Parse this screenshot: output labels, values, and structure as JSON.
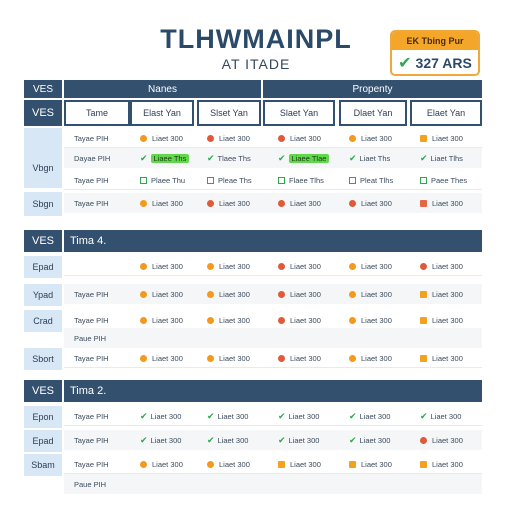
{
  "header": {
    "title": "TLHWMAINPL",
    "subtitle": "AT ITADE",
    "badge_top": "EK Tbing Pur",
    "badge_value": "327 ARS"
  },
  "table": {
    "top_left": "VES",
    "group_names": "Nanes",
    "group_properties": "Propenty",
    "corner": "VES",
    "columns": [
      "Tame",
      "Elast Yan",
      "Slset Yan",
      "Slaet Yan",
      "Dlaet Yan",
      "Elaet Yan"
    ]
  },
  "section1": {
    "rows": [
      {
        "label": "Tayae PIH",
        "cells": [
          {
            "icon": "dot-orange",
            "text": "Liaet 300"
          },
          {
            "icon": "dot-red",
            "text": "Liaet 300"
          },
          {
            "icon": "dot-red",
            "text": "Liaet 300"
          },
          {
            "icon": "dot-orange",
            "text": "Liaet 300"
          },
          {
            "icon": "sq-orange",
            "text": "Liaet 300"
          }
        ]
      },
      {
        "label": "Dayae PIH",
        "cells": [
          {
            "icon": "check",
            "text": "Liaee Ths",
            "highlight": true
          },
          {
            "icon": "check",
            "text": "Tlaee Ths"
          },
          {
            "icon": "check",
            "text": "Liaee Tlae",
            "highlight": true
          },
          {
            "icon": "check",
            "text": "Liaet Ths"
          },
          {
            "icon": "check",
            "text": "Liaet Tlhs"
          }
        ]
      },
      {
        "label": "Tayae PIH",
        "cells": [
          {
            "icon": "box",
            "text": "Plaee Thu"
          },
          {
            "icon": "box",
            "text": "Pleae Ths"
          },
          {
            "icon": "box",
            "text": "Flaee Tlhs"
          },
          {
            "icon": "box",
            "text": "Pleat Tlhs"
          },
          {
            "icon": "box",
            "text": "Paee Thes"
          }
        ]
      },
      {
        "label": "Tayae PIH",
        "cells": [
          {
            "icon": "dot-orange",
            "text": "Liaet 300"
          },
          {
            "icon": "dot-red",
            "text": "Liaet 300"
          },
          {
            "icon": "dot-red",
            "text": "Liaet 300"
          },
          {
            "icon": "dot-red",
            "text": "Liaet 300"
          },
          {
            "icon": "sq-red",
            "text": "Liaet 300"
          }
        ]
      }
    ],
    "side": [
      "VES",
      "Vbgn",
      "Sbgn"
    ]
  },
  "section2": {
    "head_left": "VES",
    "head_title": "Tima 4.",
    "side": [
      "Epad",
      "Ypad",
      "Crad",
      "Sbort"
    ],
    "rows": [
      {
        "label": "",
        "cells": [
          {
            "icon": "dot-orange",
            "text": "Liaet 300"
          },
          {
            "icon": "dot-orange",
            "text": "Liaet 300"
          },
          {
            "icon": "dot-red",
            "text": "Liaet 300"
          },
          {
            "icon": "dot-orange",
            "text": "Liaet 300"
          },
          {
            "icon": "dot-red",
            "text": "Liaet 300"
          }
        ]
      },
      {
        "label": "Tayae PIH",
        "cells": [
          {
            "icon": "dot-orange",
            "text": "Liaet 300"
          },
          {
            "icon": "dot-orange",
            "text": "Liaet 300"
          },
          {
            "icon": "dot-red",
            "text": "Liaet 300"
          },
          {
            "icon": "dot-orange",
            "text": "Liaet 300"
          },
          {
            "icon": "sq-orange",
            "text": "Liaet 300"
          }
        ]
      },
      {
        "label": "Tayae PIH",
        "cells": [
          {
            "icon": "dot-orange",
            "text": "Liaet 300"
          },
          {
            "icon": "dot-orange",
            "text": "Liaet 300"
          },
          {
            "icon": "dot-red",
            "text": "Liaet 300"
          },
          {
            "icon": "dot-orange",
            "text": "Liaet 300"
          },
          {
            "icon": "sq-orange",
            "text": "Liaet 300"
          }
        ]
      },
      {
        "label": "Paue PIH",
        "cells": []
      },
      {
        "label": "Tayae PIH",
        "cells": [
          {
            "icon": "dot-orange",
            "text": "Liaet 300"
          },
          {
            "icon": "dot-orange",
            "text": "Liaet 300"
          },
          {
            "icon": "dot-red",
            "text": "Liaet 300"
          },
          {
            "icon": "dot-orange",
            "text": "Liaet 300"
          },
          {
            "icon": "sq-orange",
            "text": "Liaet 300"
          }
        ]
      }
    ]
  },
  "section3": {
    "head_left": "VES",
    "head_title": "Tima 2.",
    "side": [
      "Epon",
      "Epad",
      "Sbam"
    ],
    "rows": [
      {
        "label": "Tayae PIH",
        "cells": [
          {
            "icon": "check",
            "text": "Liaet 300"
          },
          {
            "icon": "check",
            "text": "Liaet 300"
          },
          {
            "icon": "check",
            "text": "Liaet 300"
          },
          {
            "icon": "check",
            "text": "Liaet 300"
          },
          {
            "icon": "check",
            "text": "Liaet 300"
          }
        ]
      },
      {
        "label": "Tayae PIH",
        "cells": [
          {
            "icon": "check",
            "text": "Liaet 300"
          },
          {
            "icon": "check",
            "text": "Liaet 300"
          },
          {
            "icon": "check",
            "text": "Liaet 300"
          },
          {
            "icon": "check",
            "text": "Liaet 300"
          },
          {
            "icon": "dot-red",
            "text": "Liaet 300"
          }
        ]
      },
      {
        "label": "Tayae PIH",
        "cells": [
          {
            "icon": "dot-orange",
            "text": "Liaet 300"
          },
          {
            "icon": "dot-orange",
            "text": "Liaet 300"
          },
          {
            "icon": "sq-orange",
            "text": "Liaet 300"
          },
          {
            "icon": "sq-orange",
            "text": "Liaet 300"
          },
          {
            "icon": "sq-orange",
            "text": "Liaet 300"
          }
        ]
      },
      {
        "label": "Paue PIH",
        "cells": []
      }
    ]
  },
  "colors": {
    "header_bg": "#34506f",
    "side_bg": "#d7e7f5",
    "accent_orange": "#f39a1e",
    "accent_red": "#e05a3a",
    "accent_green": "#2ea84c"
  }
}
